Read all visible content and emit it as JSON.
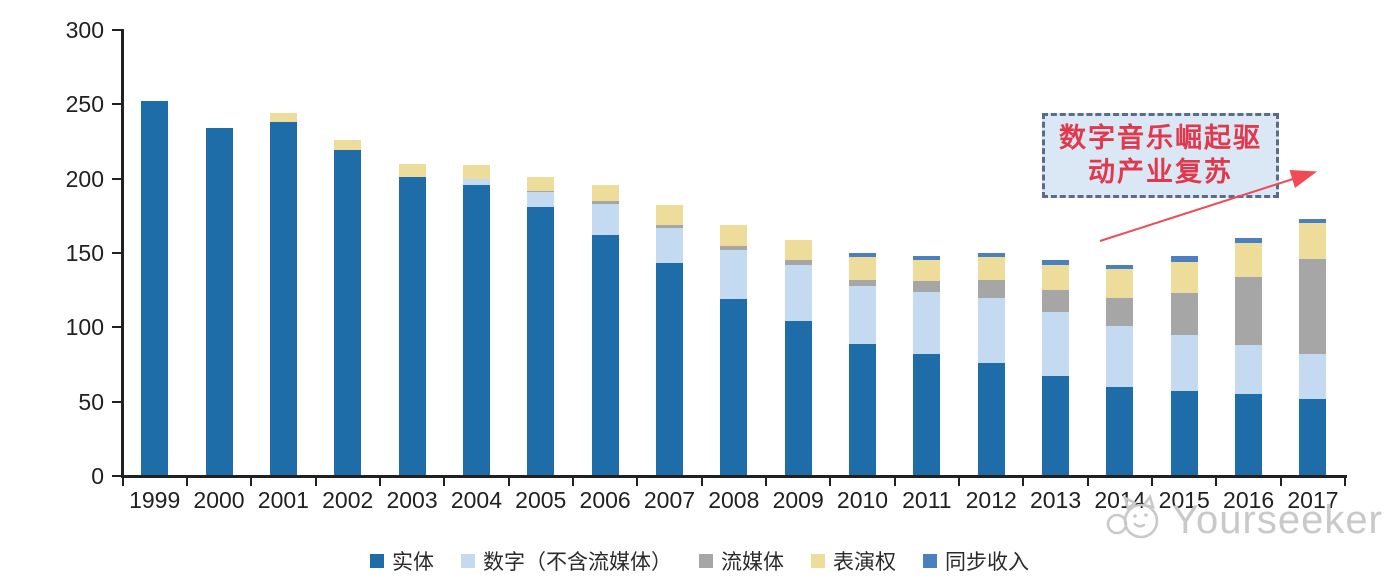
{
  "chart_data": {
    "type": "bar",
    "stacked": true,
    "categories": [
      "1999",
      "2000",
      "2001",
      "2002",
      "2003",
      "2004",
      "2005",
      "2006",
      "2007",
      "2008",
      "2009",
      "2010",
      "2011",
      "2012",
      "2013",
      "2014",
      "2015",
      "2016",
      "2017"
    ],
    "series": [
      {
        "key": "physical",
        "name": "实体",
        "color": "#1E6CA8",
        "values": [
          252,
          234,
          238,
          219,
          201,
          196,
          181,
          162,
          143,
          119,
          104,
          89,
          82,
          76,
          67,
          60,
          57,
          55,
          52
        ]
      },
      {
        "key": "digital-ex-streaming",
        "name": "数字（不含流媒体）",
        "color": "#C4DAF0",
        "values": [
          0,
          0,
          0,
          0,
          0,
          4,
          10,
          21,
          24,
          33,
          38,
          39,
          42,
          44,
          43,
          41,
          38,
          33,
          30
        ]
      },
      {
        "key": "streaming",
        "name": "流媒体",
        "color": "#A6A6A6",
        "values": [
          0,
          0,
          0,
          0,
          0,
          0,
          1,
          2,
          2,
          3,
          3,
          4,
          7,
          12,
          15,
          19,
          28,
          46,
          64
        ]
      },
      {
        "key": "performance-rights",
        "name": "表演权",
        "color": "#EDDC9A",
        "values": [
          0,
          0,
          6,
          7,
          9,
          9,
          9,
          11,
          13,
          14,
          14,
          15,
          14,
          15,
          17,
          19,
          21,
          23,
          24
        ]
      },
      {
        "key": "sync-revenue",
        "name": "同步收入",
        "color": "#4A80BF",
        "values": [
          0,
          0,
          0,
          0,
          0,
          0,
          0,
          0,
          0,
          0,
          0,
          3,
          3,
          3,
          3,
          3,
          4,
          3,
          3
        ]
      }
    ],
    "ylim": [
      0,
      300
    ],
    "yticks": [
      0,
      50,
      100,
      150,
      200,
      250,
      300
    ],
    "grid": false,
    "legend_position": "bottom"
  },
  "annotation": {
    "line1": "数字音乐崛起驱",
    "line2": "动产业复苏",
    "full_text": "数字音乐崛起驱动产业复苏",
    "text_color": "#E0394D",
    "box_fill": "#DAE7F5",
    "box_border_color": "#5B6B8C",
    "arrow_color": "#EE4B56"
  },
  "watermark": {
    "text": "Yourseeker",
    "logo": "yourseeker-cat-logo",
    "color": "#C9C9C9"
  }
}
